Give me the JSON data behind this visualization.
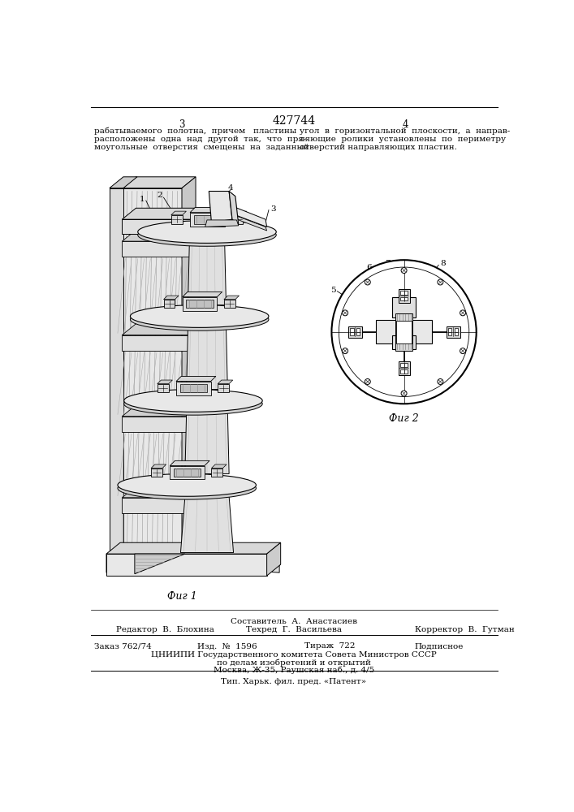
{
  "bg_color": "#ffffff",
  "page_number_center": "427744",
  "page_num_left": "3",
  "page_num_right": "4",
  "top_text_left": "рабатываемого  полотна,  причем   пластины\nрасположены  одна  над  другой  так,  что  пря-\nмоугольные  отверстия  смещены  на  заданный",
  "top_text_right": "угол  в  горизонтальной  плоскости,  а  направ-\nляющие  ролики  установлены  по  периметру\nотверстий направляющих пластин.",
  "fig1_caption": "Фиг 1",
  "fig2_caption": "Фиг 2",
  "footer_composer": "Составитель  А.  Анастасиев",
  "footer_editor": "Редактор  В.  Блохина",
  "footer_tech": "Техред  Г.  Васильева",
  "footer_corrector": "Корректор  В.  Гутман",
  "footer_order": "Заказ 762/74",
  "footer_pub": "Изд.  №  1596",
  "footer_tirazh": "Тираж  722",
  "footer_podp": "Подписное",
  "footer_tsniipi": "ЦНИИПИ Государственного комитета Совета Министров СССР",
  "footer_dela": "по делам изобретений и открытий",
  "footer_addr": "Москва, Ж-35, Раушская наб., д. 4/5",
  "footer_tip": "Тип. Харьк. фил. пред. «Патент»",
  "font_size_main": 7.5,
  "font_size_header": 8.5,
  "font_size_pagenum": 9,
  "lw": 0.8,
  "hatch_color": "#aaaaaa"
}
